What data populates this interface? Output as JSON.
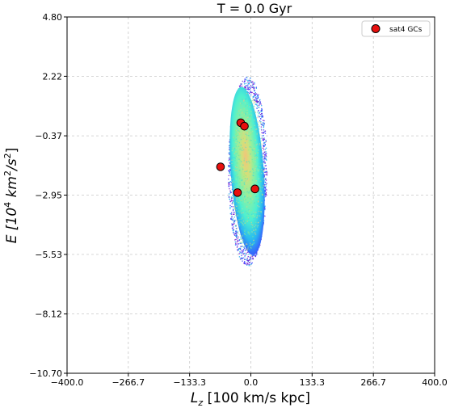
{
  "chart_data": {
    "type": "scatter",
    "title": "T = 0.0 Gyr",
    "xlabel": {
      "main": "L",
      "sub": "z",
      "rest": " [100 km/s kpc]"
    },
    "ylabel": {
      "main": "E [10",
      "sup1": "4",
      "mid": " km",
      "sup2": "2",
      "end": "/s",
      "sup3": "2",
      "close": "]"
    },
    "xlim": [
      -400.0,
      400.0
    ],
    "ylim": [
      -10.7,
      4.8
    ],
    "xticks": [
      "−400.0",
      "−266.7",
      "−133.3",
      "0.0",
      "133.3",
      "266.7",
      "400.0"
    ],
    "xtick_values": [
      -400.0,
      -266.7,
      -133.3,
      0.0,
      133.3,
      266.7,
      400.0
    ],
    "yticks": [
      "4.80",
      "2.22",
      "−0.37",
      "−2.95",
      "−5.53",
      "−8.12",
      "−10.70"
    ],
    "ytick_values": [
      4.8,
      2.22,
      -0.37,
      -2.95,
      -5.53,
      -8.12,
      -10.7
    ],
    "grid": true,
    "legend_position": "top-right",
    "density_cloud": {
      "center_x": -8,
      "center_y": -1.9,
      "half_width_x": 40,
      "half_height_y": 3.9,
      "note_colors": [
        "#6a0dad",
        "#3f51ff",
        "#22c7e8",
        "#50f0a0",
        "#a8f07a",
        "#f0c070"
      ]
    },
    "series": [
      {
        "name": "sat4 GCs",
        "color": "#e8100e",
        "points": [
          {
            "x": -22,
            "y": 0.2
          },
          {
            "x": -14,
            "y": 0.05
          },
          {
            "x": -66,
            "y": -1.72
          },
          {
            "x": -29,
            "y": -2.84
          },
          {
            "x": 9,
            "y": -2.68
          }
        ]
      }
    ]
  }
}
